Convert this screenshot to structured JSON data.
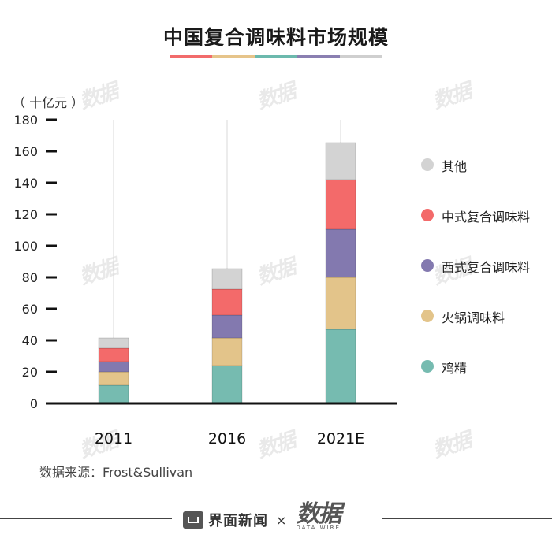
{
  "title": "中国复合调味料市场规模",
  "title_bar_colors": [
    "#f26b6b",
    "#e6c48a",
    "#6cb9ad",
    "#8a7fb1",
    "#cfcfcf"
  ],
  "unit": "（ 十亿元 ）",
  "source": "数据来源：Frost&Sullivan",
  "footer": {
    "brand": "界面新闻",
    "times": "×",
    "partner": "数据",
    "partner_sub": "DATA WIRE"
  },
  "watermark_text": "数据",
  "chart_data": {
    "type": "bar",
    "stacked": true,
    "title": "中国复合调味料市场规模",
    "ylabel": "（ 十亿元 ）",
    "ylim": [
      0,
      180
    ],
    "yticks": [
      0,
      20,
      40,
      60,
      80,
      100,
      120,
      140,
      160,
      180
    ],
    "grid": false,
    "legend_position": "right",
    "categories": [
      "2011",
      "2016",
      "2021E"
    ],
    "series": [
      {
        "name": "鸡精",
        "color": "#76bbb0",
        "values": [
          11.5,
          24,
          47
        ]
      },
      {
        "name": "火锅调味料",
        "color": "#e3c48a",
        "values": [
          8.5,
          17.5,
          33
        ]
      },
      {
        "name": "西式复合调味料",
        "color": "#8379af",
        "values": [
          6.5,
          14.5,
          30.5
        ]
      },
      {
        "name": "中式复合调味料",
        "color": "#f36a6a",
        "values": [
          8.5,
          16.5,
          31.5
        ]
      },
      {
        "name": "其他",
        "color": "#d3d3d3",
        "values": [
          6.5,
          13,
          23.5
        ]
      }
    ]
  }
}
